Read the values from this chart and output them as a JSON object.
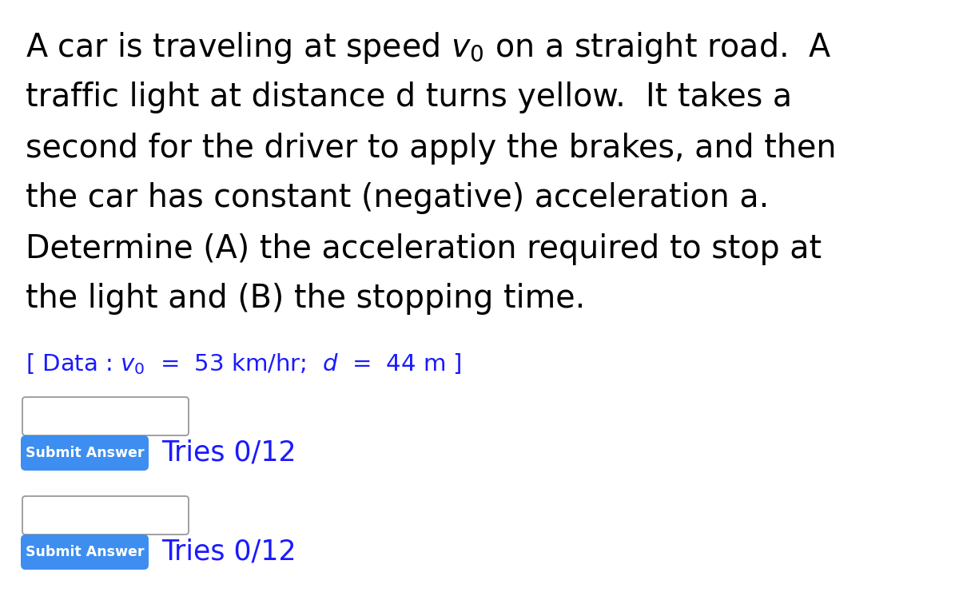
{
  "bg_color": "#ffffff",
  "text_color": "#000000",
  "blue_color": "#1a1aff",
  "button_color": "#3d8ef0",
  "button_text_color": "#ffffff",
  "main_text_lines": [
    "A car is traveling at speed $v_0$ on a straight road.  A",
    "traffic light at distance d turns yellow.  It takes a",
    "second for the driver to apply the brakes, and then",
    "the car has constant (negative) acceleration a.",
    "Determine (A) the acceleration required to stop at",
    "the light and (B) the stopping time."
  ],
  "submit_button_label": "Submit Answer",
  "tries_label": "Tries 0/12",
  "main_fontsize": 28.5,
  "data_fontsize": 21,
  "button_fontsize": 12.5,
  "tries_fontsize": 25,
  "figwidth": 12.0,
  "figheight": 7.71,
  "dpi": 100
}
